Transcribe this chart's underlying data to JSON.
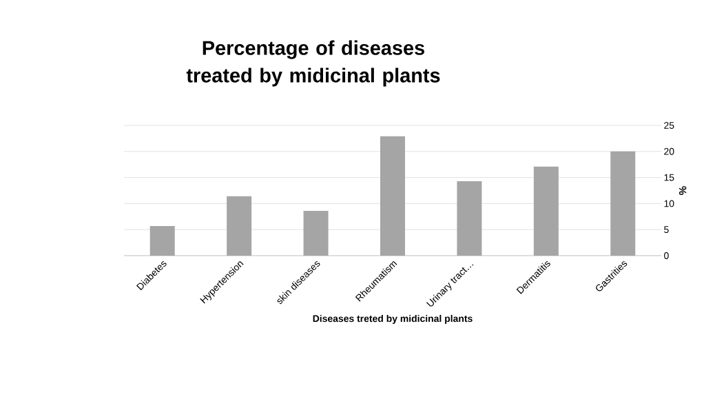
{
  "chart_data": {
    "type": "bar",
    "title": "Percentage of diseases treated by midicinal plants",
    "xlabel": "Diseases treted by midicinal plants",
    "ylabel": "%",
    "categories": [
      "Diabetes",
      "Hypertension",
      "skin diseases",
      "Rheumatism",
      "Urinary tract…",
      "Dermatitis",
      "Gastrities"
    ],
    "values": [
      5.7,
      11.4,
      8.6,
      22.9,
      14.3,
      17.1,
      20.0
    ],
    "color": "#a5a5a5",
    "ylim": [
      0,
      25
    ],
    "yticks": [
      0,
      5,
      10,
      15,
      20,
      25
    ],
    "grid": "y"
  }
}
